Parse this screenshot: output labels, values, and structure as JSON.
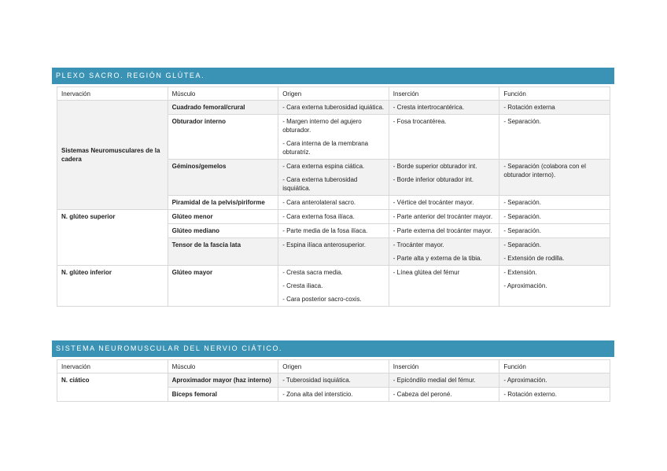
{
  "section1": {
    "title": "PLEXO SACRO. REGIÓN GLÚTEA.",
    "headers": [
      "Inervación",
      "Músculo",
      "Origen",
      "Inserción",
      "Función"
    ],
    "groups": [
      {
        "nerve": "Sistemas Neuromusculares de la cadera",
        "rows": [
          {
            "muscle": "Cuadrado femoral/crural",
            "origin": [
              "- Cara externa tuberosidad iquiática."
            ],
            "insertion": [
              "- Cresta intertrocantérica."
            ],
            "function": [
              "- Rotación externa"
            ]
          },
          {
            "muscle": "Obturador interno",
            "origin": [
              "- Margen interno del agujero obturador.",
              "- Cara interna de la membrana obturatriz."
            ],
            "insertion": [
              "- Fosa trocantérea."
            ],
            "function": [
              "- Separación."
            ]
          },
          {
            "muscle": "Géminos/gemelos",
            "origin": [
              "- Cara externa espina ciática.",
              "- Cara externa tuberosidad isquiática."
            ],
            "insertion": [
              "- Borde superior obturador int.",
              "- Borde inferior obturador int."
            ],
            "function": [
              "- Separación (colabora con el obturador interno)."
            ]
          },
          {
            "muscle": "Piramidal de la pelvis/piriforme",
            "origin": [
              "- Cara anterolateral sacro."
            ],
            "insertion": [
              "- Vértice del trocánter mayor."
            ],
            "function": [
              "- Separación."
            ]
          }
        ]
      },
      {
        "nerve": "N. glúteo superior",
        "rows": [
          {
            "muscle": "Glúteo menor",
            "origin": [
              "- Cara externa fosa ilíaca."
            ],
            "insertion": [
              "- Parte anterior del trocánter mayor."
            ],
            "function": [
              "- Separación."
            ]
          },
          {
            "muscle": "Glúteo mediano",
            "origin": [
              "- Parte media de la fosa ilíaca."
            ],
            "insertion": [
              "- Parte externa del trocánter mayor."
            ],
            "function": [
              "- Separación."
            ]
          },
          {
            "muscle": "Tensor de la fascia lata",
            "origin": [
              "- Espina ilíaca anterosuperior."
            ],
            "insertion": [
              "- Trocánter mayor.",
              "- Parte alta y externa de la tibia."
            ],
            "function": [
              "- Separación.",
              "- Extensión de rodilla."
            ]
          }
        ]
      },
      {
        "nerve": "N. glúteo inferior",
        "rows": [
          {
            "muscle": "Glúteo mayor",
            "origin": [
              "- Cresta sacra media.",
              "- Cresta iliaca.",
              "- Cara posterior sacro-coxis."
            ],
            "insertion": [
              "- Línea glútea del fémur"
            ],
            "function": [
              "- Extensión.",
              "- Aproximación."
            ]
          }
        ]
      }
    ]
  },
  "section2": {
    "title": "SISTEMA NEUROMUSCULAR DEL NERVIO CIÁTICO.",
    "headers": [
      "Inervación",
      "Músculo",
      "Origen",
      "Inserción",
      "Función"
    ],
    "groups": [
      {
        "nerve": "N. ciático",
        "rows": [
          {
            "muscle": "Aproximador mayor (haz interno)",
            "origin": [
              "- Tuberosidad isquiática."
            ],
            "insertion": [
              "- Epicóndilo medial del fémur."
            ],
            "function": [
              "- Aproximación."
            ]
          },
          {
            "muscle": "Bíceps femoral",
            "origin": [
              "- Zona alta del intersticio."
            ],
            "insertion": [
              "- Cabeza del peroné."
            ],
            "function": [
              "- Rotación externo."
            ]
          }
        ]
      }
    ]
  },
  "colors": {
    "header_bar": "#3a93b5",
    "row_shade": "#f2f2f2"
  }
}
